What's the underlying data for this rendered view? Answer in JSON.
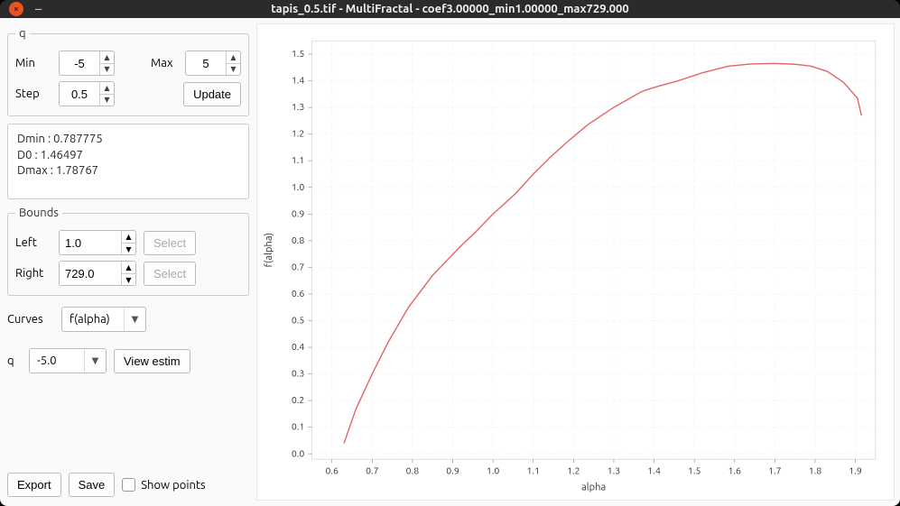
{
  "window": {
    "title": "tapis_0.5.tif - MultiFractal - coef3.00000_min1.00000_max729.000"
  },
  "q_group": {
    "legend": "q",
    "min_label": "Min",
    "min_value": "-5",
    "max_label": "Max",
    "max_value": "5",
    "step_label": "Step",
    "step_value": "0.5",
    "update_label": "Update"
  },
  "results": {
    "dmin_label": "Dmin :",
    "dmin_value": "0.787775",
    "d0_label": "D0 :",
    "d0_value": "1.46497",
    "dmax_label": "Dmax :",
    "dmax_value": "1.78767"
  },
  "bounds_group": {
    "legend": "Bounds",
    "left_label": "Left",
    "left_value": "1.0",
    "right_label": "Right",
    "right_value": "729.0",
    "select_label": "Select"
  },
  "curves": {
    "label": "Curves",
    "selected": "f(alpha)"
  },
  "estim": {
    "q_label": "q",
    "q_value": "-5.0",
    "view_label": "View estim"
  },
  "footer": {
    "export_label": "Export",
    "save_label": "Save",
    "showpoints_label": "Show points"
  },
  "chart": {
    "type": "line",
    "xlabel": "alpha",
    "ylabel": "f(alpha)",
    "xlim": [
      0.55,
      1.95
    ],
    "ylim": [
      -0.02,
      1.55
    ],
    "xticks": [
      0.6,
      0.7,
      0.8,
      0.9,
      1.0,
      1.1,
      1.2,
      1.3,
      1.4,
      1.5,
      1.6,
      1.7,
      1.8,
      1.9
    ],
    "yticks": [
      0.0,
      0.1,
      0.2,
      0.3,
      0.4,
      0.5,
      0.6,
      0.7,
      0.8,
      0.9,
      1.0,
      1.1,
      1.2,
      1.3,
      1.4,
      1.5
    ],
    "line_color": "#e36666",
    "line_width": 1.4,
    "grid_color": "#eeeeee",
    "background_color": "#ffffff",
    "tick_fontsize": 10.5,
    "label_fontsize": 11,
    "data": [
      [
        0.63,
        0.04
      ],
      [
        0.66,
        0.17
      ],
      [
        0.7,
        0.3
      ],
      [
        0.74,
        0.42
      ],
      [
        0.79,
        0.55
      ],
      [
        0.85,
        0.67
      ],
      [
        0.92,
        0.78
      ],
      [
        0.955,
        0.83
      ],
      [
        1.0,
        0.9
      ],
      [
        1.055,
        0.975
      ],
      [
        1.1,
        1.05
      ],
      [
        1.14,
        1.11
      ],
      [
        1.18,
        1.165
      ],
      [
        1.235,
        1.235
      ],
      [
        1.3,
        1.3
      ],
      [
        1.37,
        1.36
      ],
      [
        1.4,
        1.375
      ],
      [
        1.46,
        1.4
      ],
      [
        1.52,
        1.43
      ],
      [
        1.585,
        1.455
      ],
      [
        1.64,
        1.463
      ],
      [
        1.7,
        1.465
      ],
      [
        1.75,
        1.462
      ],
      [
        1.79,
        1.455
      ],
      [
        1.83,
        1.435
      ],
      [
        1.87,
        1.395
      ],
      [
        1.905,
        1.335
      ],
      [
        1.915,
        1.27
      ]
    ]
  }
}
